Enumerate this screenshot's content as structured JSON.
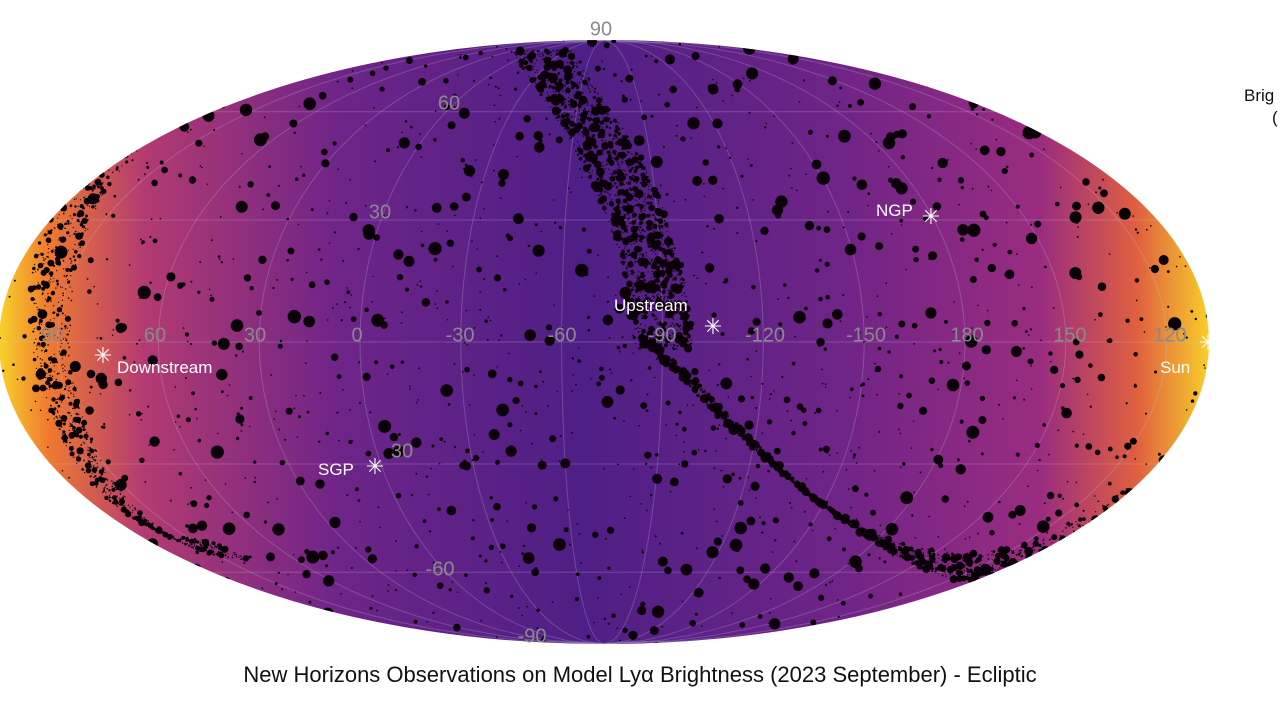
{
  "chart_data": {
    "type": "heatmap",
    "projection": "mollweide",
    "title": "New Horizons Observations on Model Lyα Brightness (2023 September) - Ecliptic",
    "colorbar_label": "Brig",
    "colorbar_label_line2": "(",
    "lon_ticks": [
      "90",
      "60",
      "30",
      "0",
      "-30",
      "-60",
      "-90",
      "-120",
      "-150",
      "180",
      "150",
      "120"
    ],
    "lat_ticks": {
      "p90": "90",
      "p60": "60",
      "p30": "30",
      "m30": "30",
      "m60": "-60",
      "m90": "-90"
    },
    "markers": [
      "Downstream",
      "Upstream",
      "NGP",
      "SGP",
      "Sun"
    ],
    "grid": true,
    "colormap": [
      "#2a0f5a",
      "#5a1e8a",
      "#8a2a8a",
      "#c43a6a",
      "#ef6a30",
      "#f8c82a"
    ]
  }
}
